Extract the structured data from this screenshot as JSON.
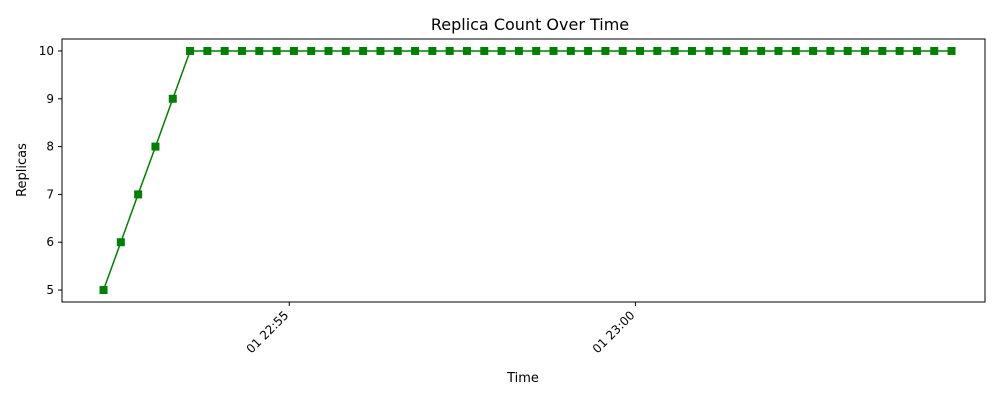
{
  "chart_data": {
    "type": "line",
    "title": "Replica Count Over Time",
    "xlabel": "Time",
    "ylabel": "Replicas",
    "x_tick_labels": [
      {
        "t": "22:55",
        "label": "01 22:55"
      },
      {
        "t": "23:00",
        "label": "01 23:00"
      }
    ],
    "y_ticks": [
      5,
      6,
      7,
      8,
      9,
      10
    ],
    "xlim": [
      "22:51:43",
      "23:05:03"
    ],
    "ylim": [
      4.75,
      10.25
    ],
    "grid": false,
    "series": [
      {
        "color": "#008000",
        "marker": "square",
        "x": [
          "22:52:19",
          "22:52:34",
          "22:52:49",
          "22:53:04",
          "22:53:19",
          "22:53:34",
          "22:53:49",
          "22:54:04",
          "22:54:19",
          "22:54:34",
          "22:54:49",
          "22:55:04",
          "22:55:19",
          "22:55:34",
          "22:55:49",
          "22:56:04",
          "22:56:19",
          "22:56:34",
          "22:56:49",
          "22:57:04",
          "22:57:19",
          "22:57:34",
          "22:57:49",
          "22:58:04",
          "22:58:19",
          "22:58:34",
          "22:58:49",
          "22:59:04",
          "22:59:19",
          "22:59:34",
          "22:59:49",
          "23:00:04",
          "23:00:19",
          "23:00:34",
          "23:00:49",
          "23:01:04",
          "23:01:19",
          "23:01:34",
          "23:01:49",
          "23:02:04",
          "23:02:19",
          "23:02:34",
          "23:02:49",
          "23:03:04",
          "23:03:19",
          "23:03:34",
          "23:03:49",
          "23:04:04",
          "23:04:19",
          "23:04:34"
        ],
        "values": [
          5,
          6,
          7,
          8,
          9,
          10,
          10,
          10,
          10,
          10,
          10,
          10,
          10,
          10,
          10,
          10,
          10,
          10,
          10,
          10,
          10,
          10,
          10,
          10,
          10,
          10,
          10,
          10,
          10,
          10,
          10,
          10,
          10,
          10,
          10,
          10,
          10,
          10,
          10,
          10,
          10,
          10,
          10,
          10,
          10,
          10,
          10,
          10,
          10,
          10
        ]
      }
    ]
  }
}
